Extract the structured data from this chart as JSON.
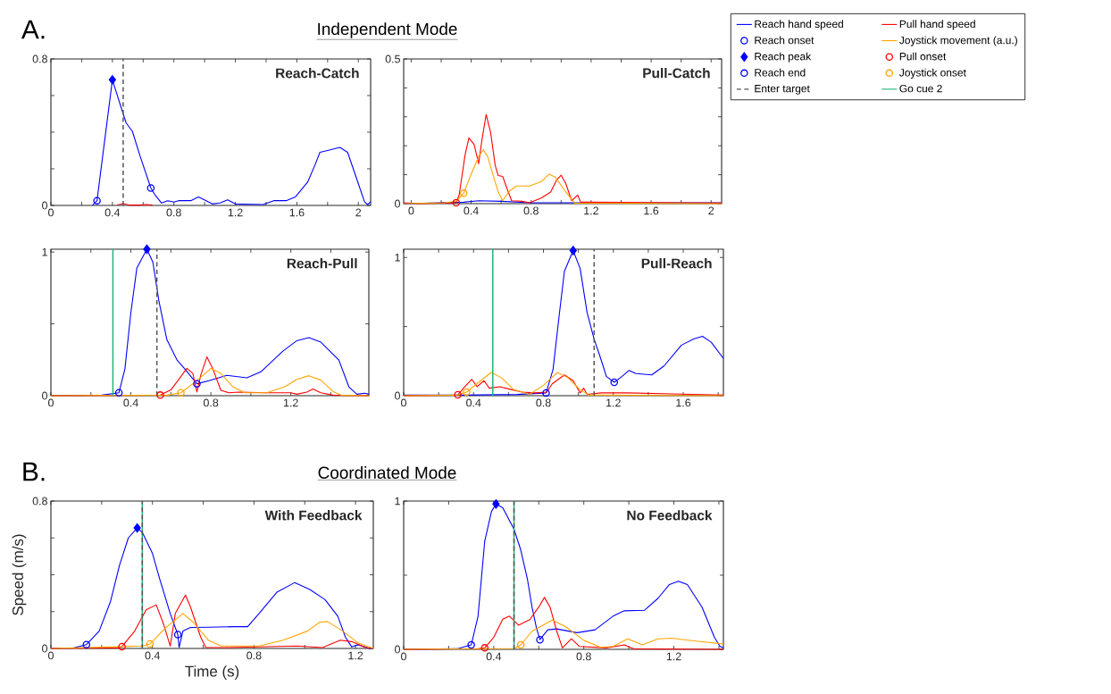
{
  "chart_data": [
    {
      "type": "line",
      "title": "Reach-Catch",
      "annotations": [
        "A.",
        "Independent Mode"
      ],
      "xlim": [
        0,
        2.08
      ],
      "ylim": [
        0,
        0.8
      ],
      "xticks": [
        0,
        {
          "value": 0.2,
          "label": null
        },
        0.4,
        {
          "value": 0.6,
          "label": null
        },
        0.8,
        {
          "value": 1.0,
          "label": null
        },
        1.2,
        {
          "value": 1.4,
          "label": null
        },
        1.6,
        {
          "value": 1.8,
          "label": null
        },
        2
      ],
      "yticks": [
        0,
        {
          "value": 0.2,
          "label": null
        },
        {
          "value": 0.4,
          "label": null
        },
        {
          "value": 0.6,
          "label": null
        },
        0.8
      ],
      "ref_lines": [
        {
          "axis": "x",
          "value": 0.47,
          "color": "#555555",
          "line_style": "dashed"
        }
      ],
      "series": [
        {
          "type": "line",
          "color": "#0000ff",
          "x": [
            0.27,
            0.3,
            0.4,
            0.47,
            0.49,
            0.53,
            0.58,
            0.65,
            0.68,
            0.72,
            0.76,
            0.8,
            0.83,
            0.91,
            0.96,
            1.01,
            1.05,
            1.1,
            1.15,
            1.2,
            1.38,
            1.45,
            1.53,
            1.59,
            1.67,
            1.72,
            1.75,
            1.8,
            1.88,
            1.93,
            1.99,
            2.04,
            2.06,
            2.08
          ],
          "values": [
            0,
            0.026,
            0.686,
            0.5,
            0.45,
            0.405,
            0.27,
            0.095,
            0.054,
            0.013,
            0.026,
            0.018,
            0.026,
            0.026,
            0.046,
            0.026,
            0.008,
            0.013,
            0.03,
            0.008,
            0.005,
            0.026,
            0.026,
            0.046,
            0.127,
            0.225,
            0.29,
            0.3,
            0.317,
            0.29,
            0.144,
            0.02,
            0.005,
            0.02
          ]
        },
        {
          "type": "line",
          "color": "#ff0000",
          "x": [
            0.43,
            0.47,
            0.51,
            0.58,
            0.62,
            0.66
          ],
          "values": [
            0.002,
            0.01,
            0.002,
            0.002,
            0.005,
            0.002
          ]
        },
        {
          "type": "scatter",
          "color": "#0000ff",
          "marker": "circle",
          "x": [
            0.3
          ],
          "values": [
            0.026
          ]
        },
        {
          "type": "scatter",
          "color": "#0000ff",
          "marker": "diamond",
          "x": [
            0.4
          ],
          "values": [
            0.686
          ]
        },
        {
          "type": "scatter",
          "color": "#0000ff",
          "marker": "circle",
          "x": [
            0.65
          ],
          "values": [
            0.095
          ]
        }
      ]
    },
    {
      "type": "line",
      "title": "Pull-Catch",
      "xlim": [
        -0.05,
        2.07
      ],
      "ylim": [
        0,
        0.5
      ],
      "xticks": [
        0,
        {
          "value": 0.2,
          "label": null
        },
        0.4,
        {
          "value": 0.6,
          "label": null
        },
        0.8,
        {
          "value": 1.0,
          "label": null
        },
        1.2,
        {
          "value": 1.4,
          "label": null
        },
        1.6,
        {
          "value": 1.8,
          "label": null
        },
        2
      ],
      "yticks": [
        0,
        {
          "value": 0.1,
          "label": null
        },
        {
          "value": 0.2,
          "label": null
        },
        {
          "value": 0.3,
          "label": null
        },
        {
          "value": 0.4,
          "label": null
        },
        0.5
      ],
      "series": [
        {
          "type": "line",
          "color": "#0000ff",
          "x": [
            -0.05,
            0.35,
            0.45,
            0.6,
            0.8,
            2.07
          ],
          "values": [
            0,
            0.005,
            0.01,
            0.008,
            0.003,
            0.003
          ]
        },
        {
          "type": "line",
          "color": "#ff0000",
          "x": [
            -0.05,
            0.06,
            0.3,
            0.32,
            0.36,
            0.385,
            0.42,
            0.45,
            0.47,
            0.5,
            0.53,
            0.56,
            0.58,
            0.61,
            0.64,
            0.67,
            0.74,
            0.79,
            0.87,
            0.93,
            0.97,
            1.0,
            1.03,
            1.07,
            1.11,
            1.13,
            1.19,
            2.07
          ],
          "values": [
            0.003,
            0,
            0.003,
            0.03,
            0.17,
            0.227,
            0.204,
            0.138,
            0.214,
            0.308,
            0.245,
            0.133,
            0.097,
            0.094,
            0.051,
            0.01,
            0.008,
            0.003,
            0.02,
            0.04,
            0.082,
            0.098,
            0.071,
            0.01,
            0.03,
            0.005,
            0.005,
            0.002
          ]
        },
        {
          "type": "line",
          "color": "#ffa500",
          "x": [
            -0.05,
            0.22,
            0.3,
            0.35,
            0.4,
            0.45,
            0.48,
            0.51,
            0.55,
            0.58,
            0.61,
            0.65,
            0.7,
            0.79,
            0.87,
            0.92,
            0.96,
            1.03,
            1.09,
            2.07
          ],
          "values": [
            0,
            0.003,
            0.008,
            0.036,
            0.102,
            0.163,
            0.186,
            0.163,
            0.092,
            0.041,
            0.01,
            0.041,
            0.061,
            0.061,
            0.077,
            0.102,
            0.092,
            0.041,
            0.002,
            0
          ]
        },
        {
          "type": "scatter",
          "color": "#ff0000",
          "marker": "circle",
          "x": [
            0.3
          ],
          "values": [
            0.003
          ]
        },
        {
          "type": "scatter",
          "color": "#ffa500",
          "marker": "circle",
          "x": [
            0.35
          ],
          "values": [
            0.036
          ]
        }
      ]
    },
    {
      "type": "line",
      "title": "Reach-Pull",
      "xlim": [
        0,
        1.59
      ],
      "ylim": [
        0,
        1.02
      ],
      "xticks": [
        0,
        {
          "value": 0.2,
          "label": null
        },
        0.4,
        {
          "value": 0.6,
          "label": null
        },
        0.8,
        {
          "value": 1.0,
          "label": null
        },
        1.2,
        {
          "value": 1.4,
          "label": null
        }
      ],
      "yticks": [
        0,
        {
          "value": 0.5,
          "label": null
        },
        1
      ],
      "ref_lines": [
        {
          "axis": "x",
          "value": 0.53,
          "color": "#555555",
          "line_style": "dashed"
        },
        {
          "axis": "x",
          "value": 0.31,
          "color": "#1fb478",
          "line_style": "solid"
        }
      ],
      "series": [
        {
          "type": "line",
          "color": "#0000ff",
          "x": [
            0,
            0.255,
            0.34,
            0.37,
            0.4,
            0.43,
            0.48,
            0.51,
            0.54,
            0.58,
            0.63,
            0.67,
            0.7,
            0.73,
            0.79,
            0.88,
            0.98,
            1.05,
            1.16,
            1.23,
            1.29,
            1.35,
            1.44,
            1.49,
            1.53,
            1.57,
            1.59
          ],
          "values": [
            0,
            0.004,
            0.02,
            0.186,
            0.58,
            0.89,
            1.02,
            0.93,
            0.66,
            0.39,
            0.25,
            0.186,
            0.135,
            0.083,
            0.104,
            0.141,
            0.124,
            0.166,
            0.31,
            0.383,
            0.404,
            0.373,
            0.248,
            0.062,
            0.01,
            0.017,
            0.01
          ]
        },
        {
          "type": "line",
          "color": "#ff0000",
          "x": [
            0,
            0.547,
            0.6,
            0.64,
            0.68,
            0.71,
            0.73,
            0.75,
            0.78,
            0.81,
            0.85,
            0.89,
            0.94,
            1.08,
            1.2,
            1.23,
            1.28,
            1.31,
            1.35,
            1.41,
            1.59
          ],
          "values": [
            0,
            0.004,
            0.04,
            0.114,
            0.19,
            0.155,
            0.025,
            0.145,
            0.27,
            0.186,
            0.037,
            0.02,
            0.025,
            0.02,
            0.02,
            0.01,
            0.025,
            0.046,
            0.02,
            0.004,
            0
          ]
        },
        {
          "type": "scatter",
          "color": "#0000ff",
          "marker": "circle",
          "x": [
            0.34
          ],
          "values": [
            0.02
          ]
        },
        {
          "type": "line",
          "color": "#ffa500",
          "x": [
            0,
            0.58,
            0.65,
            0.71,
            0.79,
            0.8,
            0.85,
            0.91,
            0.97,
            1.08,
            1.17,
            1.23,
            1.29,
            1.35,
            1.41,
            1.45,
            1.59
          ],
          "values": [
            0,
            0.004,
            0.02,
            0.083,
            0.176,
            0.19,
            0.155,
            0.062,
            0.02,
            0.02,
            0.062,
            0.114,
            0.139,
            0.108,
            0.03,
            0.004,
            0
          ]
        },
        {
          "type": "scatter",
          "color": "#0000ff",
          "marker": "diamond",
          "x": [
            0.48
          ],
          "values": [
            1.02
          ]
        },
        {
          "type": "scatter",
          "color": "#ff0000",
          "marker": "circle",
          "x": [
            0.547
          ],
          "values": [
            0.004
          ]
        },
        {
          "type": "scatter",
          "color": "#0000ff",
          "marker": "circle",
          "x": [
            0.73
          ],
          "values": [
            0.083
          ]
        },
        {
          "type": "scatter",
          "color": "#ffa500",
          "marker": "circle",
          "x": [
            0.65
          ],
          "values": [
            0.02
          ]
        }
      ]
    },
    {
      "type": "line",
      "title": "Pull-Reach",
      "legend": "right",
      "xlim": [
        0,
        1.83
      ],
      "ylim": [
        0,
        1.06
      ],
      "xticks": [
        0,
        {
          "value": 0.2,
          "label": null
        },
        0.4,
        {
          "value": 0.6,
          "label": null
        },
        0.8,
        {
          "value": 1.0,
          "label": null
        },
        1.2,
        {
          "value": 1.4,
          "label": null
        },
        1.6,
        {
          "value": 1.8,
          "label": null
        }
      ],
      "yticks": [
        0,
        {
          "value": 0.5,
          "label": null
        },
        1
      ],
      "ref_lines": [
        {
          "axis": "x",
          "value": 1.09,
          "color": "#555555",
          "line_style": "dashed",
          "label": "Enter target"
        },
        {
          "axis": "x",
          "value": 0.51,
          "color": "#1fb478",
          "line_style": "solid",
          "label": "Go cue 2"
        }
      ],
      "series": [
        {
          "type": "line",
          "name": "Reach hand speed",
          "color": "#0000ff",
          "x": [
            0,
            0.34,
            0.65,
            0.815,
            0.855,
            0.89,
            0.92,
            0.97,
            1.01,
            1.05,
            1.09,
            1.13,
            1.16,
            1.205,
            1.25,
            1.29,
            1.33,
            1.42,
            1.49,
            1.59,
            1.66,
            1.71,
            1.76,
            1.83
          ],
          "values": [
            0.004,
            0.004,
            0.009,
            0.02,
            0.19,
            0.58,
            0.9,
            1.05,
            0.92,
            0.6,
            0.41,
            0.26,
            0.14,
            0.097,
            0.14,
            0.183,
            0.16,
            0.15,
            0.215,
            0.366,
            0.41,
            0.43,
            0.387,
            0.27
          ]
        },
        {
          "type": "line",
          "name": "Pull hand speed",
          "color": "#ff0000",
          "x": [
            0,
            0.29,
            0.31,
            0.35,
            0.39,
            0.42,
            0.46,
            0.49,
            0.55,
            0.62,
            0.68,
            0.75,
            0.82,
            0.85,
            0.92,
            0.97,
            1.01,
            1.03,
            1.05,
            1.13,
            1.28,
            1.54,
            1.83
          ],
          "values": [
            0,
            0.004,
            0.006,
            0.065,
            0.118,
            0.065,
            0.108,
            0.054,
            0.065,
            0.043,
            0.026,
            0.02,
            0.026,
            0.086,
            0.15,
            0.108,
            0.02,
            0.054,
            0.01,
            0.02,
            0.02,
            0.013,
            0.004
          ]
        },
        {
          "type": "scatter",
          "name": "Reach onset",
          "color": "#0000ff",
          "marker": "circle",
          "x": [
            0.815
          ],
          "values": [
            0.02
          ]
        },
        {
          "type": "line",
          "name": "Joystick movement (a.u.)",
          "color": "#ffa500",
          "x": [
            0,
            0.31,
            0.36,
            0.43,
            0.5,
            0.56,
            0.63,
            0.72,
            0.8,
            0.88,
            0.94,
            1.01,
            1.06,
            1.83
          ],
          "values": [
            0,
            0.004,
            0.026,
            0.097,
            0.168,
            0.13,
            0.043,
            0.01,
            0.075,
            0.168,
            0.13,
            0.043,
            0.004,
            0
          ]
        },
        {
          "type": "scatter",
          "name": "Reach peak",
          "color": "#0000ff",
          "marker": "diamond",
          "x": [
            0.97
          ],
          "values": [
            1.05
          ]
        },
        {
          "type": "scatter",
          "name": "Pull onset",
          "color": "#ff0000",
          "marker": "circle",
          "x": [
            0.31
          ],
          "values": [
            0.006
          ]
        },
        {
          "type": "scatter",
          "name": "Reach end",
          "color": "#0000ff",
          "marker": "circle",
          "x": [
            1.205
          ],
          "values": [
            0.097
          ]
        },
        {
          "type": "scatter",
          "name": "Joystick onset",
          "color": "#ffa500",
          "marker": "circle",
          "x": [
            0.36
          ],
          "values": [
            0.026
          ]
        }
      ]
    },
    {
      "type": "line",
      "title": "With Feedback",
      "annotations": [
        "B.",
        "Coordinated Mode"
      ],
      "xlabel": "Time (s)",
      "ylabel": "Speed (m/s)",
      "xlim": [
        0,
        1.27
      ],
      "ylim": [
        0,
        0.8
      ],
      "xticks": [
        0,
        {
          "value": 0.2,
          "label": null
        },
        0.4,
        {
          "value": 0.6,
          "label": null
        },
        0.8,
        {
          "value": 1.0,
          "label": null
        },
        1.2
      ],
      "yticks": [
        0,
        {
          "value": 0.2,
          "label": null
        },
        {
          "value": 0.4,
          "label": null
        },
        {
          "value": 0.6,
          "label": null
        },
        0.8
      ],
      "ref_lines": [
        {
          "axis": "x",
          "value": 0.36,
          "color": "#1fb478",
          "line_style": "solid"
        },
        {
          "axis": "x",
          "value": 0.36,
          "color": "#555555",
          "line_style": "dashed"
        }
      ],
      "series": [
        {
          "type": "line",
          "color": "#0000ff",
          "x": [
            0,
            0.09,
            0.14,
            0.19,
            0.235,
            0.27,
            0.305,
            0.34,
            0.36,
            0.4,
            0.43,
            0.47,
            0.5,
            0.505,
            0.52,
            0.55,
            0.62,
            0.72,
            0.775,
            0.82,
            0.89,
            0.96,
            1.02,
            1.08,
            1.13,
            1.16,
            1.185,
            1.21,
            1.255,
            1.27
          ],
          "values": [
            0,
            0.003,
            0.021,
            0.094,
            0.256,
            0.45,
            0.6,
            0.654,
            0.63,
            0.516,
            0.37,
            0.19,
            0.075,
            0.005,
            0.094,
            0.114,
            0.115,
            0.118,
            0.118,
            0.19,
            0.305,
            0.357,
            0.32,
            0.265,
            0.175,
            0.062,
            0.008,
            0.02,
            0,
            0
          ]
        },
        {
          "type": "line",
          "color": "#ff0000",
          "x": [
            0,
            0.27,
            0.28,
            0.33,
            0.375,
            0.415,
            0.445,
            0.47,
            0.49,
            0.53,
            0.55,
            0.59,
            0.61,
            0.69,
            0.97,
            1.07,
            1.14,
            1.185,
            1.24,
            1.27
          ],
          "values": [
            0,
            0.003,
            0.01,
            0.094,
            0.21,
            0.237,
            0.127,
            0.013,
            0.19,
            0.29,
            0.224,
            0.062,
            0.005,
            0.005,
            0.013,
            0.005,
            0.045,
            0.037,
            0.005,
            0
          ]
        },
        {
          "type": "scatter",
          "color": "#0000ff",
          "marker": "circle",
          "x": [
            0.14
          ],
          "values": [
            0.021
          ]
        },
        {
          "type": "line",
          "color": "#ffa500",
          "x": [
            0,
            0.22,
            0.36,
            0.39,
            0.45,
            0.52,
            0.56,
            0.62,
            0.67,
            0.82,
            0.915,
            1.01,
            1.06,
            1.09,
            1.15,
            1.21,
            1.27
          ],
          "values": [
            0,
            0.008,
            0.013,
            0.024,
            0.11,
            0.19,
            0.143,
            0.045,
            0.013,
            0.013,
            0.045,
            0.094,
            0.143,
            0.146,
            0.094,
            0.03,
            0
          ]
        },
        {
          "type": "scatter",
          "color": "#0000ff",
          "marker": "diamond",
          "x": [
            0.34
          ],
          "values": [
            0.654
          ]
        },
        {
          "type": "scatter",
          "color": "#ff0000",
          "marker": "circle",
          "x": [
            0.28
          ],
          "values": [
            0.01
          ]
        },
        {
          "type": "scatter",
          "color": "#0000ff",
          "marker": "circle",
          "x": [
            0.5
          ],
          "values": [
            0.075
          ]
        },
        {
          "type": "scatter",
          "color": "#ffa500",
          "marker": "circle",
          "x": [
            0.39
          ],
          "values": [
            0.024
          ]
        }
      ]
    },
    {
      "type": "line",
      "title": "No Feedback",
      "xlim": [
        0,
        1.42
      ],
      "ylim": [
        0,
        1
      ],
      "xticks": [
        0,
        {
          "value": 0.2,
          "label": null
        },
        0.4,
        {
          "value": 0.6,
          "label": null
        },
        0.8,
        {
          "value": 1.0,
          "label": null
        },
        1.2,
        {
          "value": 1.4,
          "label": null
        }
      ],
      "yticks": [
        0,
        {
          "value": 0.5,
          "label": null
        },
        1
      ],
      "ref_lines": [
        {
          "axis": "x",
          "value": 0.49,
          "color": "#1fb478",
          "line_style": "solid"
        },
        {
          "axis": "x",
          "value": 0.49,
          "color": "#555555",
          "line_style": "dashed"
        }
      ],
      "series": [
        {
          "type": "line",
          "color": "#0000ff",
          "x": [
            0,
            0.24,
            0.3,
            0.33,
            0.36,
            0.39,
            0.41,
            0.44,
            0.49,
            0.52,
            0.55,
            0.57,
            0.59,
            0.605,
            0.64,
            0.68,
            0.77,
            0.85,
            0.93,
            0.98,
            1.07,
            1.13,
            1.18,
            1.22,
            1.26,
            1.325,
            1.38,
            1.405,
            1.42
          ],
          "values": [
            0,
            0.004,
            0.03,
            0.22,
            0.73,
            0.93,
            0.98,
            0.955,
            0.81,
            0.67,
            0.47,
            0.285,
            0.142,
            0.065,
            0.132,
            0.138,
            0.112,
            0.132,
            0.224,
            0.26,
            0.264,
            0.345,
            0.437,
            0.46,
            0.437,
            0.285,
            0.081,
            0.02,
            0.01
          ]
        },
        {
          "type": "line",
          "color": "#ff0000",
          "x": [
            0,
            0.33,
            0.36,
            0.4,
            0.44,
            0.47,
            0.51,
            0.56,
            0.6,
            0.625,
            0.65,
            0.68,
            0.705,
            0.745,
            0.78,
            0.9,
            0.98,
            1.02,
            1.42
          ],
          "values": [
            0,
            0.004,
            0.01,
            0.081,
            0.203,
            0.224,
            0.163,
            0.2,
            0.285,
            0.35,
            0.285,
            0.122,
            0.01,
            0.071,
            0.02,
            0.01,
            0.03,
            0.004,
            0
          ]
        },
        {
          "type": "scatter",
          "color": "#0000ff",
          "marker": "circle",
          "x": [
            0.3
          ],
          "values": [
            0.03
          ]
        },
        {
          "type": "line",
          "color": "#ffa500",
          "x": [
            0,
            0.49,
            0.52,
            0.57,
            0.66,
            0.72,
            0.8,
            0.875,
            0.93,
            0.995,
            1.06,
            1.13,
            1.19,
            1.325,
            1.42
          ],
          "values": [
            0,
            0.006,
            0.03,
            0.122,
            0.197,
            0.152,
            0.061,
            0.014,
            0.02,
            0.071,
            0.03,
            0.071,
            0.075,
            0.051,
            0.037
          ]
        },
        {
          "type": "scatter",
          "color": "#0000ff",
          "marker": "diamond",
          "x": [
            0.41
          ],
          "values": [
            0.98
          ]
        },
        {
          "type": "scatter",
          "color": "#ff0000",
          "marker": "circle",
          "x": [
            0.36
          ],
          "values": [
            0.01
          ]
        },
        {
          "type": "scatter",
          "color": "#0000ff",
          "marker": "circle",
          "x": [
            0.605
          ],
          "values": [
            0.065
          ]
        },
        {
          "type": "scatter",
          "color": "#ffa500",
          "marker": "circle",
          "x": [
            0.52
          ],
          "values": [
            0.03
          ]
        }
      ]
    }
  ]
}
